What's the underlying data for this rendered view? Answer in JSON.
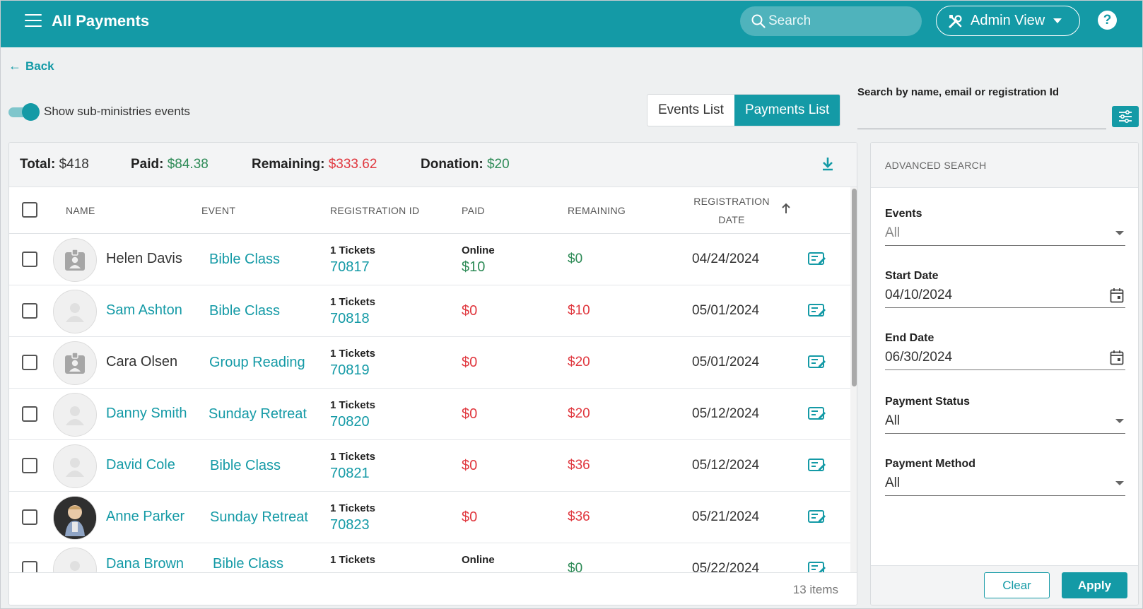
{
  "header": {
    "title": "All Payments",
    "search_placeholder": "Search",
    "admin_view_label": "Admin View",
    "help_label": "?"
  },
  "nav": {
    "back_label": "Back"
  },
  "toggle": {
    "label": "Show sub-ministries events",
    "on": true
  },
  "view_switch": {
    "events_label": "Events List",
    "payments_label": "Payments List",
    "active": "Payments List"
  },
  "search_box": {
    "label": "Search by name, email or registration Id",
    "value": ""
  },
  "totals": {
    "total_label": "Total:",
    "total_value": "$418",
    "paid_label": "Paid:",
    "paid_value": "$84.38",
    "remaining_label": "Remaining:",
    "remaining_value": "$333.62",
    "donation_label": "Donation:",
    "donation_value": "$20"
  },
  "table": {
    "columns": {
      "name": "NAME",
      "event": "EVENT",
      "registration_id": "REGISTRATION ID",
      "paid": "PAID",
      "remaining": "REMAINING",
      "registration_date_1": "REGISTRATION",
      "registration_date_2": "DATE"
    },
    "rows": [
      {
        "name": "Helen Davis",
        "event": "Bible Class",
        "tickets": "1 Tickets",
        "reg_id": "70817",
        "paid_method": "Online",
        "paid": "$10",
        "remaining": "$0",
        "date": "04/24/2024"
      },
      {
        "name": "Sam Ashton",
        "event": "Bible Class",
        "tickets": "1 Tickets",
        "reg_id": "70818",
        "paid_method": "",
        "paid": "$0",
        "remaining": "$10",
        "date": "05/01/2024"
      },
      {
        "name": "Cara Olsen",
        "event": "Group Reading",
        "tickets": "1 Tickets",
        "reg_id": "70819",
        "paid_method": "",
        "paid": "$0",
        "remaining": "$20",
        "date": "05/01/2024"
      },
      {
        "name": "Danny Smith",
        "event": "Sunday Retreat",
        "tickets": "1 Tickets",
        "reg_id": "70820",
        "paid_method": "",
        "paid": "$0",
        "remaining": "$20",
        "date": "05/12/2024"
      },
      {
        "name": "David Cole",
        "event": "Bible Class",
        "tickets": "1 Tickets",
        "reg_id": "70821",
        "paid_method": "",
        "paid": "$0",
        "remaining": "$36",
        "date": "05/12/2024"
      },
      {
        "name": "Anne Parker",
        "event": "Sunday Retreat",
        "tickets": "1 Tickets",
        "reg_id": "70823",
        "paid_method": "",
        "paid": "$0",
        "remaining": "$36",
        "date": "05/21/2024"
      },
      {
        "name": "Dana Brown",
        "event": "Bible Class",
        "tickets": "1 Tickets",
        "reg_id": "",
        "paid_method": "Online",
        "paid": "",
        "remaining": "$0",
        "date": "05/22/2024"
      }
    ],
    "items_count": "13 items"
  },
  "advanced_search": {
    "title": "ADVANCED SEARCH",
    "events_label": "Events",
    "events_value": "All",
    "start_label": "Start Date",
    "start_value": "04/10/2024",
    "end_label": "End Date",
    "end_value": "06/30/2024",
    "status_label": "Payment Status",
    "status_value": "All",
    "method_label": "Payment Method",
    "method_value": "All",
    "clear_label": "Clear",
    "apply_label": "Apply"
  },
  "colors": {
    "brand": "#149aa6",
    "paid_green": "#2e8b57",
    "due_red": "#e0383f"
  }
}
